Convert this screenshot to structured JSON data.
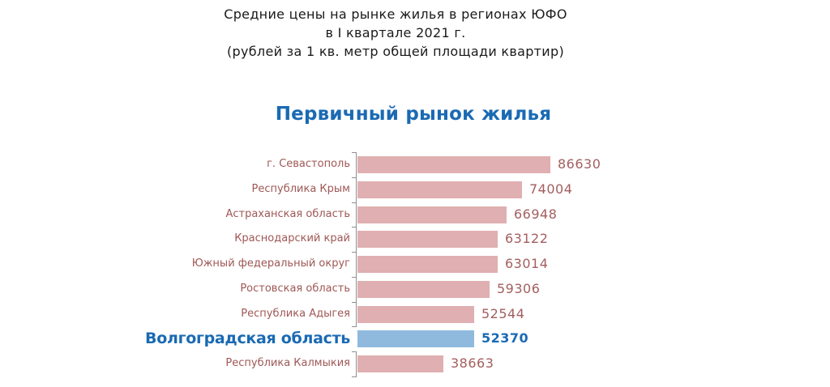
{
  "header": {
    "line1": "Средние цены на рынке жилья в регионах ЮФО",
    "line2": "в I квартале 2021 г.",
    "line3": "(рублей за 1 кв. метр общей площади квартир)"
  },
  "chart_data": {
    "type": "bar",
    "orientation": "horizontal",
    "title": "Первичный рынок жилья",
    "categories": [
      "г. Севастополь",
      "Республика Крым",
      "Астраханская область",
      "Краснодарский край",
      "Южный федеральный округ",
      "Ростовская область",
      "Республика Адыгея",
      "Волгоградская область",
      "Республика Калмыкия"
    ],
    "values": [
      86630,
      74004,
      66948,
      63122,
      63014,
      59306,
      52544,
      52370,
      38663
    ],
    "highlight_index": 7,
    "highlight_category": "Волгоградская область",
    "value_labels_shown": true,
    "axis_tick_labels_shown": false,
    "gridlines": false,
    "legend": "none",
    "xlim": [
      0,
      90000
    ],
    "colors": {
      "bar": "#e0afb1",
      "highlight_bar": "#8fbade",
      "category_label": "#9e5856",
      "value_label": "#a35e5e",
      "highlight_text": "#1a6ab3",
      "chart_title": "#1a6ab3",
      "axis": "#8f8f8f",
      "header_text": "#1a1a1a",
      "background": "#ffffff"
    }
  }
}
